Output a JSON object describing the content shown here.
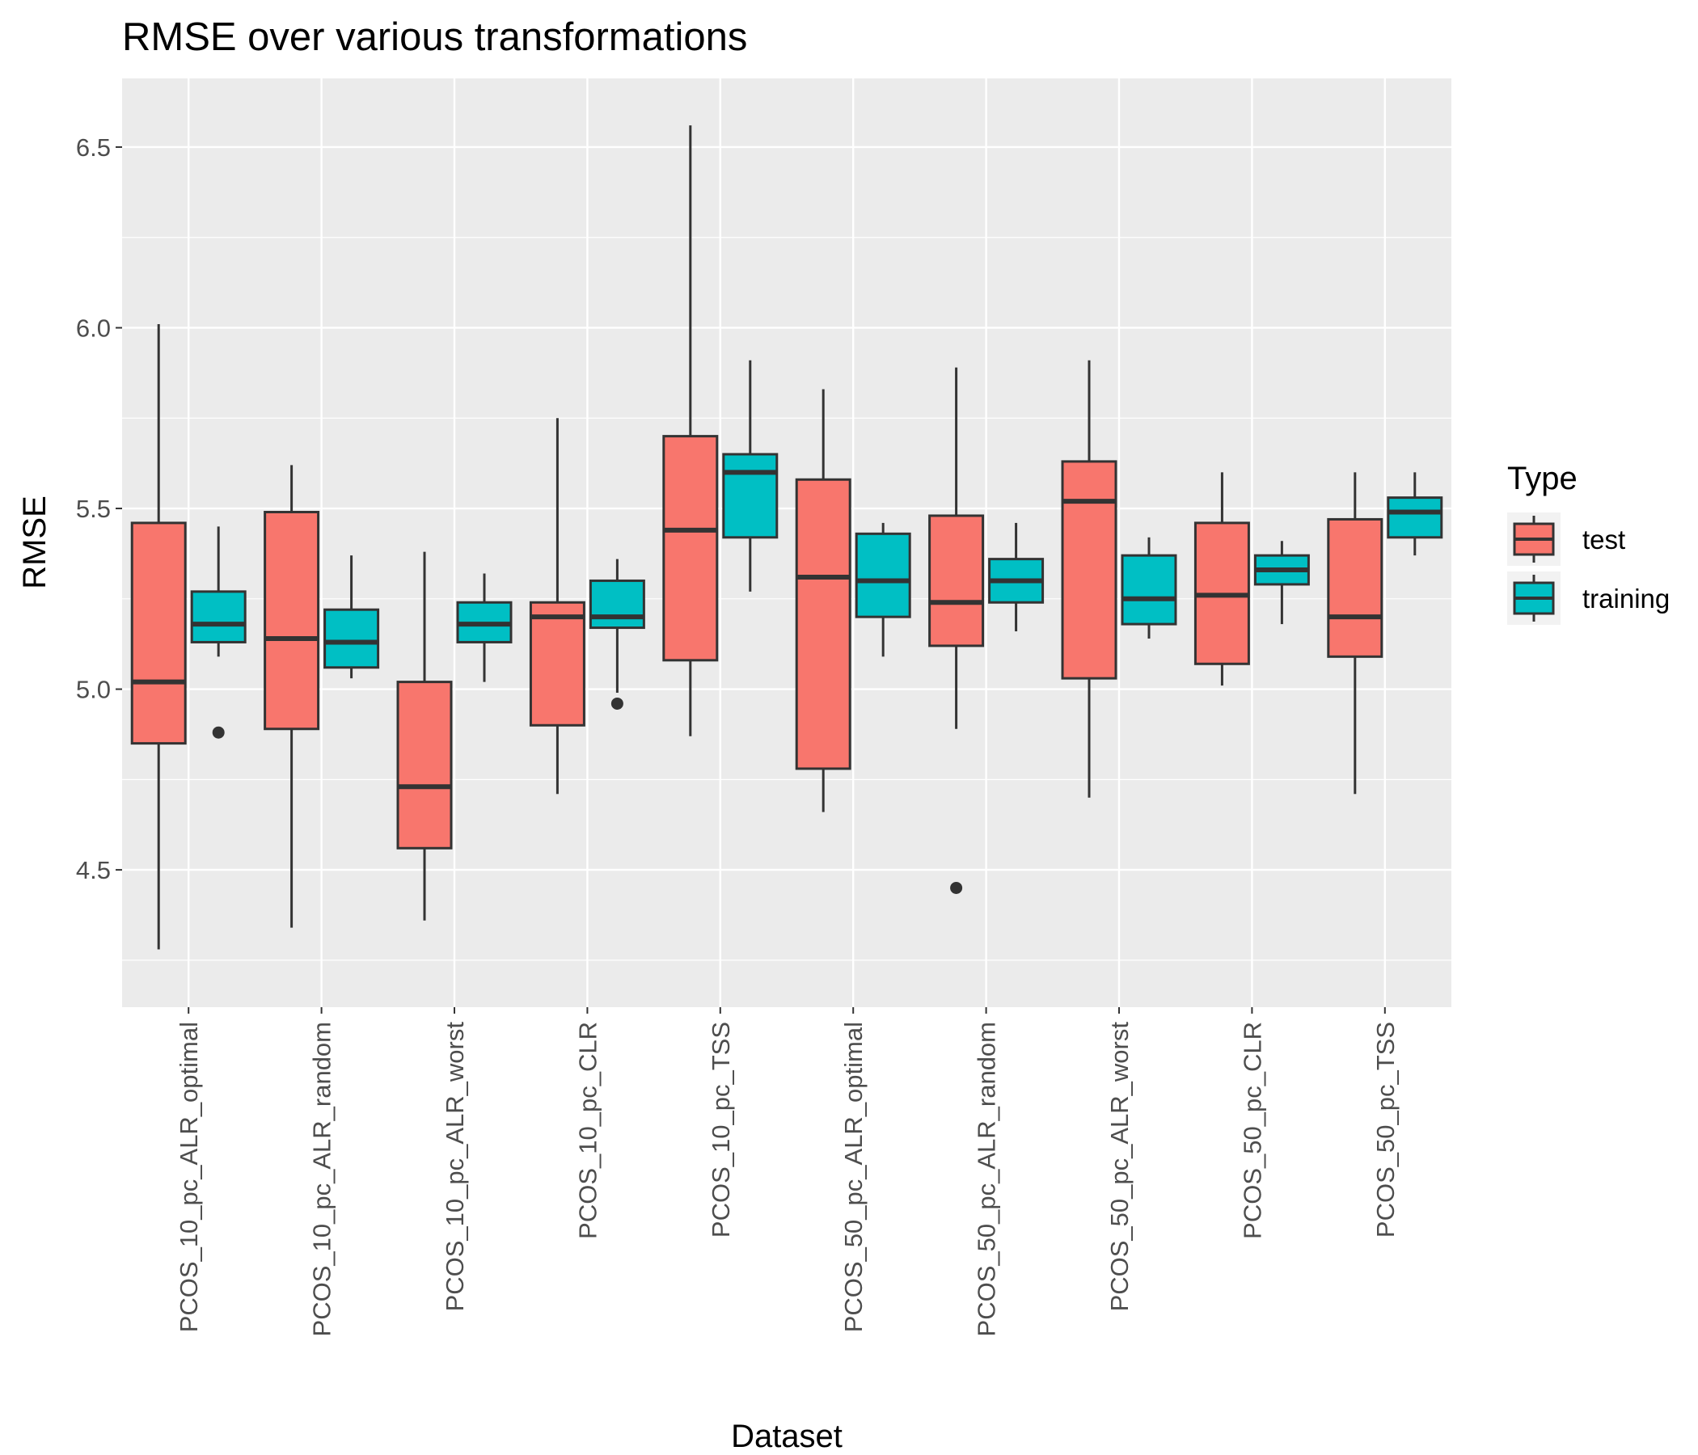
{
  "chart_data": {
    "type": "boxplot",
    "title": "RMSE over various transformations",
    "xlabel": "Dataset",
    "ylabel": "RMSE",
    "ylim": [
      4.12,
      6.69
    ],
    "yticks": [
      4.5,
      5.0,
      5.5,
      6.0,
      6.5
    ],
    "ytick_labels": [
      "4.5",
      "5.0",
      "5.5",
      "6.0",
      "6.5"
    ],
    "grid": true,
    "legend": {
      "title": "Type",
      "position": "right"
    },
    "categories": [
      "PCOS_10_pc_ALR_optimal",
      "PCOS_10_pc_ALR_random",
      "PCOS_10_pc_ALR_worst",
      "PCOS_10_pc_CLR",
      "PCOS_10_pc_TSS",
      "PCOS_50_pc_ALR_optimal",
      "PCOS_50_pc_ALR_random",
      "PCOS_50_pc_ALR_worst",
      "PCOS_50_pc_CLR",
      "PCOS_50_pc_TSS"
    ],
    "series": [
      {
        "name": "test",
        "color": "#F8766D",
        "boxes": [
          {
            "whisker_low": 4.28,
            "q1": 4.85,
            "median": 5.02,
            "q3": 5.46,
            "whisker_high": 6.01,
            "outliers": []
          },
          {
            "whisker_low": 4.34,
            "q1": 4.89,
            "median": 5.14,
            "q3": 5.49,
            "whisker_high": 5.62,
            "outliers": []
          },
          {
            "whisker_low": 4.36,
            "q1": 4.56,
            "median": 4.73,
            "q3": 5.02,
            "whisker_high": 5.38,
            "outliers": []
          },
          {
            "whisker_low": 4.71,
            "q1": 4.9,
            "median": 5.2,
            "q3": 5.24,
            "whisker_high": 5.75,
            "outliers": []
          },
          {
            "whisker_low": 4.87,
            "q1": 5.08,
            "median": 5.44,
            "q3": 5.7,
            "whisker_high": 6.56,
            "outliers": []
          },
          {
            "whisker_low": 4.66,
            "q1": 4.78,
            "median": 5.31,
            "q3": 5.58,
            "whisker_high": 5.83,
            "outliers": []
          },
          {
            "whisker_low": 4.89,
            "q1": 5.12,
            "median": 5.24,
            "q3": 5.48,
            "whisker_high": 5.89,
            "outliers": [
              4.45
            ]
          },
          {
            "whisker_low": 4.7,
            "q1": 5.03,
            "median": 5.52,
            "q3": 5.63,
            "whisker_high": 5.91,
            "outliers": []
          },
          {
            "whisker_low": 5.01,
            "q1": 5.07,
            "median": 5.26,
            "q3": 5.46,
            "whisker_high": 5.6,
            "outliers": []
          },
          {
            "whisker_low": 4.71,
            "q1": 5.09,
            "median": 5.2,
            "q3": 5.47,
            "whisker_high": 5.6,
            "outliers": []
          }
        ]
      },
      {
        "name": "training",
        "color": "#00BFC4",
        "boxes": [
          {
            "whisker_low": 5.09,
            "q1": 5.13,
            "median": 5.18,
            "q3": 5.27,
            "whisker_high": 5.45,
            "outliers": [
              4.88
            ]
          },
          {
            "whisker_low": 5.03,
            "q1": 5.06,
            "median": 5.13,
            "q3": 5.22,
            "whisker_high": 5.37,
            "outliers": []
          },
          {
            "whisker_low": 5.02,
            "q1": 5.13,
            "median": 5.18,
            "q3": 5.24,
            "whisker_high": 5.32,
            "outliers": []
          },
          {
            "whisker_low": 4.99,
            "q1": 5.17,
            "median": 5.2,
            "q3": 5.3,
            "whisker_high": 5.36,
            "outliers": [
              4.96
            ]
          },
          {
            "whisker_low": 5.27,
            "q1": 5.42,
            "median": 5.6,
            "q3": 5.65,
            "whisker_high": 5.91,
            "outliers": []
          },
          {
            "whisker_low": 5.09,
            "q1": 5.2,
            "median": 5.3,
            "q3": 5.43,
            "whisker_high": 5.46,
            "outliers": []
          },
          {
            "whisker_low": 5.16,
            "q1": 5.24,
            "median": 5.3,
            "q3": 5.36,
            "whisker_high": 5.46,
            "outliers": []
          },
          {
            "whisker_low": 5.14,
            "q1": 5.18,
            "median": 5.25,
            "q3": 5.37,
            "whisker_high": 5.42,
            "outliers": []
          },
          {
            "whisker_low": 5.18,
            "q1": 5.29,
            "median": 5.33,
            "q3": 5.37,
            "whisker_high": 5.41,
            "outliers": []
          },
          {
            "whisker_low": 5.37,
            "q1": 5.42,
            "median": 5.49,
            "q3": 5.53,
            "whisker_high": 5.6,
            "outliers": []
          }
        ]
      }
    ]
  }
}
